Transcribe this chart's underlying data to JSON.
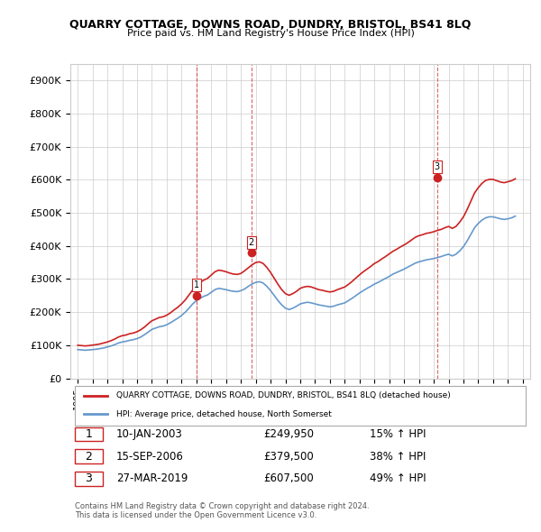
{
  "title": "QUARRY COTTAGE, DOWNS ROAD, DUNDRY, BRISTOL, BS41 8LQ",
  "subtitle": "Price paid vs. HM Land Registry's House Price Index (HPI)",
  "ylabel_format": "pound_k",
  "ylim": [
    0,
    950000
  ],
  "yticks": [
    0,
    100000,
    200000,
    300000,
    400000,
    500000,
    600000,
    700000,
    800000,
    900000
  ],
  "xlim_start": 1994.5,
  "xlim_end": 2025.5,
  "background_color": "#ffffff",
  "grid_color": "#cccccc",
  "hpi_color": "#6699cc",
  "property_color": "#cc2222",
  "sale_marker_color": "#cc2222",
  "dashed_line_color": "#cc2222",
  "sales": [
    {
      "date_num": 2003.03,
      "price": 249950,
      "label": "1"
    },
    {
      "date_num": 2006.71,
      "price": 379500,
      "label": "2"
    },
    {
      "date_num": 2019.23,
      "price": 607500,
      "label": "3"
    }
  ],
  "sale_table": [
    {
      "num": "1",
      "date": "10-JAN-2003",
      "price": "£249,950",
      "change": "15% ↑ HPI"
    },
    {
      "num": "2",
      "date": "15-SEP-2006",
      "price": "£379,500",
      "change": "38% ↑ HPI"
    },
    {
      "num": "3",
      "date": "27-MAR-2019",
      "price": "£607,500",
      "change": "49% ↑ HPI"
    }
  ],
  "legend_property": "QUARRY COTTAGE, DOWNS ROAD, DUNDRY, BRISTOL, BS41 8LQ (detached house)",
  "legend_hpi": "HPI: Average price, detached house, North Somerset",
  "footnote": "Contains HM Land Registry data © Crown copyright and database right 2024.\nThis data is licensed under the Open Government Licence v3.0.",
  "hpi_data": {
    "years": [
      1995,
      1995.25,
      1995.5,
      1995.75,
      1996,
      1996.25,
      1996.5,
      1996.75,
      1997,
      1997.25,
      1997.5,
      1997.75,
      1998,
      1998.25,
      1998.5,
      1998.75,
      1999,
      1999.25,
      1999.5,
      1999.75,
      2000,
      2000.25,
      2000.5,
      2000.75,
      2001,
      2001.25,
      2001.5,
      2001.75,
      2002,
      2002.25,
      2002.5,
      2002.75,
      2003,
      2003.25,
      2003.5,
      2003.75,
      2004,
      2004.25,
      2004.5,
      2004.75,
      2005,
      2005.25,
      2005.5,
      2005.75,
      2006,
      2006.25,
      2006.5,
      2006.75,
      2007,
      2007.25,
      2007.5,
      2007.75,
      2008,
      2008.25,
      2008.5,
      2008.75,
      2009,
      2009.25,
      2009.5,
      2009.75,
      2010,
      2010.25,
      2010.5,
      2010.75,
      2011,
      2011.25,
      2011.5,
      2011.75,
      2012,
      2012.25,
      2012.5,
      2012.75,
      2013,
      2013.25,
      2013.5,
      2013.75,
      2014,
      2014.25,
      2014.5,
      2014.75,
      2015,
      2015.25,
      2015.5,
      2015.75,
      2016,
      2016.25,
      2016.5,
      2016.75,
      2017,
      2017.25,
      2017.5,
      2017.75,
      2018,
      2018.25,
      2018.5,
      2018.75,
      2019,
      2019.25,
      2019.5,
      2019.75,
      2020,
      2020.25,
      2020.5,
      2020.75,
      2021,
      2021.25,
      2021.5,
      2021.75,
      2022,
      2022.25,
      2022.5,
      2022.75,
      2023,
      2023.25,
      2023.5,
      2023.75,
      2024,
      2024.25,
      2024.5
    ],
    "values": [
      87000,
      86000,
      85000,
      86000,
      87000,
      88000,
      90000,
      92000,
      95000,
      98000,
      102000,
      107000,
      110000,
      112000,
      115000,
      117000,
      120000,
      125000,
      132000,
      140000,
      148000,
      152000,
      156000,
      158000,
      162000,
      168000,
      175000,
      182000,
      190000,
      200000,
      212000,
      225000,
      235000,
      242000,
      248000,
      252000,
      260000,
      268000,
      272000,
      270000,
      268000,
      265000,
      263000,
      262000,
      265000,
      270000,
      278000,
      285000,
      290000,
      292000,
      288000,
      278000,
      265000,
      250000,
      235000,
      222000,
      212000,
      208000,
      212000,
      218000,
      225000,
      228000,
      230000,
      228000,
      225000,
      222000,
      220000,
      218000,
      216000,
      218000,
      222000,
      225000,
      228000,
      235000,
      242000,
      250000,
      258000,
      265000,
      272000,
      278000,
      285000,
      290000,
      296000,
      302000,
      308000,
      315000,
      320000,
      325000,
      330000,
      336000,
      342000,
      348000,
      352000,
      355000,
      358000,
      360000,
      362000,
      365000,
      368000,
      372000,
      375000,
      370000,
      375000,
      385000,
      398000,
      415000,
      435000,
      455000,
      468000,
      478000,
      485000,
      488000,
      488000,
      485000,
      482000,
      480000,
      482000,
      485000,
      490000
    ]
  },
  "property_hpi_data": {
    "years": [
      1995,
      1995.25,
      1995.5,
      1995.75,
      1996,
      1996.25,
      1996.5,
      1996.75,
      1997,
      1997.25,
      1997.5,
      1997.75,
      1998,
      1998.25,
      1998.5,
      1998.75,
      1999,
      1999.25,
      1999.5,
      1999.75,
      2000,
      2000.25,
      2000.5,
      2000.75,
      2001,
      2001.25,
      2001.5,
      2001.75,
      2002,
      2002.25,
      2002.5,
      2002.75,
      2003,
      2003.25,
      2003.5,
      2003.75,
      2004,
      2004.25,
      2004.5,
      2004.75,
      2005,
      2005.25,
      2005.5,
      2005.75,
      2006,
      2006.25,
      2006.5,
      2006.75,
      2007,
      2007.25,
      2007.5,
      2007.75,
      2008,
      2008.25,
      2008.5,
      2008.75,
      2009,
      2009.25,
      2009.5,
      2009.75,
      2010,
      2010.25,
      2010.5,
      2010.75,
      2011,
      2011.25,
      2011.5,
      2011.75,
      2012,
      2012.25,
      2012.5,
      2012.75,
      2013,
      2013.25,
      2013.5,
      2013.75,
      2014,
      2014.25,
      2014.5,
      2014.75,
      2015,
      2015.25,
      2015.5,
      2015.75,
      2016,
      2016.25,
      2016.5,
      2016.75,
      2017,
      2017.25,
      2017.5,
      2017.75,
      2018,
      2018.25,
      2018.5,
      2018.75,
      2019,
      2019.25,
      2019.5,
      2019.75,
      2020,
      2020.25,
      2020.5,
      2020.75,
      2021,
      2021.25,
      2021.5,
      2021.75,
      2022,
      2022.25,
      2022.5,
      2022.75,
      2023,
      2023.25,
      2023.5,
      2023.75,
      2024,
      2024.25,
      2024.5
    ],
    "values": [
      100000,
      99000,
      98000,
      99000,
      100500,
      102000,
      104000,
      107000,
      110000,
      114000,
      119000,
      125000,
      129000,
      131000,
      135000,
      137000,
      141000,
      147000,
      155000,
      165000,
      174000,
      179000,
      184000,
      186000,
      191000,
      198000,
      207000,
      215000,
      225000,
      237000,
      252000,
      267000,
      280000,
      290000,
      297000,
      302000,
      312000,
      322000,
      327000,
      325000,
      322000,
      318000,
      315000,
      314000,
      317000,
      325000,
      334000,
      343000,
      350000,
      352000,
      347000,
      335000,
      320000,
      302000,
      284000,
      268000,
      256000,
      251000,
      256000,
      263000,
      272000,
      276000,
      278000,
      276000,
      272000,
      268000,
      266000,
      263000,
      261000,
      263000,
      268000,
      272000,
      276000,
      284000,
      293000,
      303000,
      313000,
      322000,
      330000,
      338000,
      347000,
      353000,
      361000,
      368000,
      376000,
      384000,
      390000,
      397000,
      403000,
      410000,
      418000,
      426000,
      431000,
      434000,
      438000,
      440000,
      443000,
      447000,
      450000,
      455000,
      459000,
      453000,
      459000,
      472000,
      488000,
      510000,
      535000,
      560000,
      576000,
      589000,
      598000,
      601000,
      601000,
      597000,
      593000,
      591000,
      594000,
      597000,
      603000
    ]
  }
}
